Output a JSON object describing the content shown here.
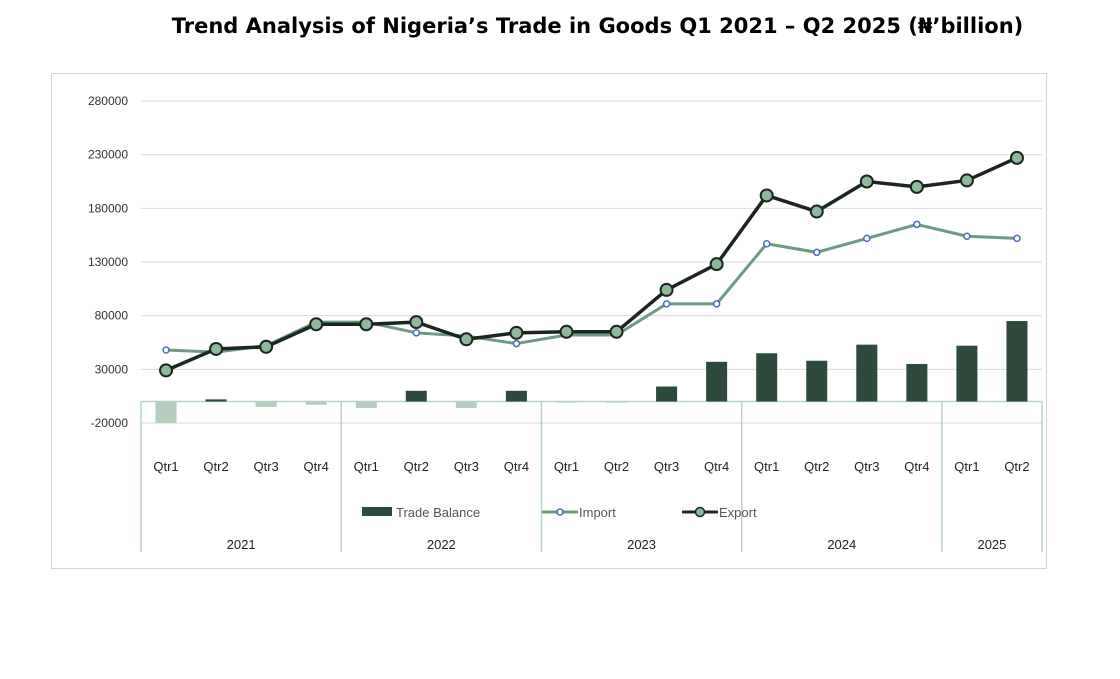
{
  "chart_data": {
    "type": "bar+line",
    "title": "Trend Analysis of Nigeria’s Trade in Goods Q1 2021 – Q2 2025 (₦’billion)",
    "y_ticks": [
      "280000",
      "230000",
      "180000",
      "130000",
      "80000",
      "30000",
      "-20000"
    ],
    "ylim": [
      -20000,
      280000
    ],
    "categories": [
      "Qtr1",
      "Qtr2",
      "Qtr3",
      "Qtr4",
      "Qtr1",
      "Qtr2",
      "Qtr3",
      "Qtr4",
      "Qtr1",
      "Qtr2",
      "Qtr3",
      "Qtr4",
      "Qtr1",
      "Qtr2",
      "Qtr3",
      "Qtr4",
      "Qtr1",
      "Qtr2"
    ],
    "years": [
      {
        "label": "2021",
        "count": 4
      },
      {
        "label": "2022",
        "count": 4
      },
      {
        "label": "2023",
        "count": 4
      },
      {
        "label": "2024",
        "count": 4
      },
      {
        "label": "2025",
        "count": 2
      }
    ],
    "series": [
      {
        "name": "Trade Balance",
        "kind": "bar",
        "color": "#2e4a3c",
        "negative_color": "#b4cdbf",
        "values": [
          -20000,
          2000,
          -5000,
          -3000,
          -6000,
          10000,
          -6000,
          10000,
          -1000,
          -1000,
          14000,
          37000,
          45000,
          38000,
          53000,
          35000,
          52000,
          75000
        ]
      },
      {
        "name": "Import",
        "kind": "line",
        "color": "#6e9a82",
        "marker": "#4a6fb0",
        "values": [
          48000,
          46000,
          52000,
          74000,
          74000,
          64000,
          61000,
          54000,
          62000,
          62000,
          91000,
          91000,
          147000,
          139000,
          152000,
          165000,
          154000,
          152000
        ]
      },
      {
        "name": "Export",
        "kind": "line",
        "color": "#1c2621",
        "marker": "#8fb89e",
        "values": [
          29000,
          49000,
          51000,
          72000,
          72000,
          74000,
          58000,
          64000,
          65000,
          65000,
          104000,
          128000,
          192000,
          177000,
          205000,
          200000,
          206000,
          227000
        ]
      }
    ]
  }
}
